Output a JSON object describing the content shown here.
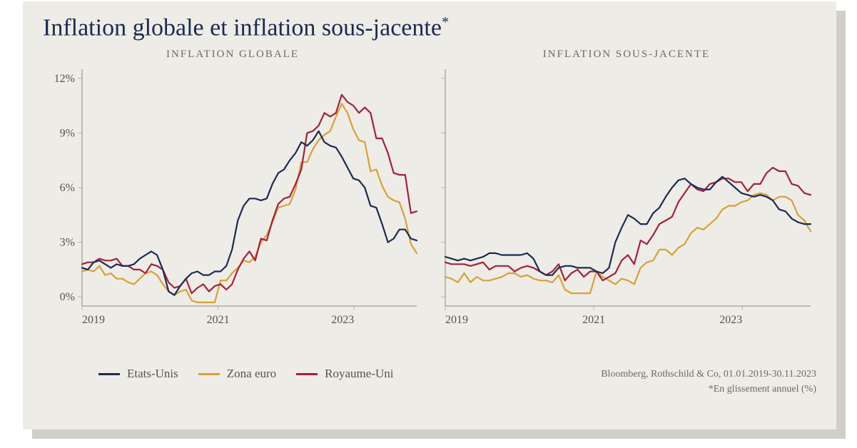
{
  "title_text": "Inflation globale et inflation sous-jacente",
  "title_asterisk": "*",
  "colors": {
    "panel_bg": "#eeece6",
    "shadow": "#d0cec8",
    "title": "#1b2a52",
    "axis_text": "#545350",
    "grid": "#b8b6af",
    "series_us": "#1b2a52",
    "series_euro": "#d6a13a",
    "series_uk": "#a1223a"
  },
  "y_axis": {
    "min": -0.5,
    "max": 12.5,
    "ticks": [
      0,
      3,
      6,
      9,
      12
    ],
    "tick_labels": [
      "0%",
      "3%",
      "6%",
      "9%",
      "12%"
    ]
  },
  "x_axis": {
    "min": 2019.0,
    "max": 2023.92,
    "ticks": [
      2019,
      2021,
      2023
    ],
    "tick_labels": [
      "2019",
      "2021",
      "2023"
    ]
  },
  "subplots": [
    {
      "title": "INFLATION GLOBALE",
      "show_y_labels": true,
      "series": {
        "us": [
          1.6,
          1.5,
          1.9,
          2.0,
          1.8,
          1.6,
          1.8,
          1.7,
          1.7,
          1.8,
          2.1,
          2.3,
          2.5,
          2.3,
          1.5,
          0.3,
          0.1,
          0.6,
          1.0,
          1.3,
          1.4,
          1.2,
          1.2,
          1.4,
          1.4,
          1.7,
          2.6,
          4.2,
          5.0,
          5.4,
          5.4,
          5.3,
          5.4,
          6.2,
          6.8,
          7.0,
          7.5,
          7.9,
          8.5,
          8.3,
          8.6,
          9.1,
          8.5,
          8.3,
          8.2,
          7.7,
          7.1,
          6.5,
          6.4,
          6.0,
          5.0,
          4.9,
          4.0,
          3.0,
          3.2,
          3.7,
          3.7,
          3.2,
          3.1
        ],
        "euro": [
          1.4,
          1.5,
          1.4,
          1.7,
          1.2,
          1.3,
          1.0,
          1.0,
          0.8,
          0.7,
          1.0,
          1.3,
          1.4,
          1.2,
          0.7,
          0.3,
          0.1,
          0.3,
          0.4,
          -0.2,
          -0.3,
          -0.3,
          -0.3,
          -0.3,
          0.9,
          0.9,
          1.3,
          1.6,
          2.0,
          1.9,
          2.2,
          3.0,
          3.4,
          4.1,
          4.9,
          5.0,
          5.1,
          5.9,
          7.4,
          7.4,
          8.1,
          8.6,
          8.9,
          9.1,
          9.9,
          10.6,
          10.1,
          9.2,
          8.6,
          8.5,
          6.9,
          7.0,
          6.1,
          5.5,
          5.3,
          5.2,
          4.3,
          2.9,
          2.4
        ],
        "uk": [
          1.8,
          1.9,
          1.9,
          2.1,
          2.0,
          2.0,
          2.1,
          1.7,
          1.7,
          1.5,
          1.5,
          1.3,
          1.8,
          1.7,
          1.5,
          0.8,
          0.5,
          0.6,
          1.0,
          0.2,
          0.5,
          0.7,
          0.3,
          0.6,
          0.7,
          0.4,
          0.7,
          1.5,
          2.1,
          2.5,
          2.0,
          3.2,
          3.1,
          4.2,
          5.1,
          5.4,
          5.5,
          6.2,
          7.0,
          9.0,
          9.1,
          9.4,
          10.1,
          9.9,
          10.1,
          11.1,
          10.7,
          10.5,
          10.1,
          10.4,
          10.1,
          8.7,
          8.7,
          7.9,
          6.8,
          6.7,
          6.7,
          4.6,
          4.7
        ]
      }
    },
    {
      "title": "INFLATION SOUS-JACENTE",
      "show_y_labels": false,
      "series": {
        "us": [
          2.2,
          2.1,
          2.0,
          2.1,
          2.0,
          2.1,
          2.2,
          2.4,
          2.4,
          2.3,
          2.3,
          2.3,
          2.3,
          2.4,
          2.1,
          1.4,
          1.2,
          1.2,
          1.6,
          1.7,
          1.7,
          1.6,
          1.6,
          1.6,
          1.4,
          1.3,
          1.6,
          3.0,
          3.8,
          4.5,
          4.3,
          4.0,
          4.0,
          4.6,
          4.9,
          5.5,
          6.0,
          6.4,
          6.5,
          6.2,
          6.0,
          5.9,
          5.9,
          6.3,
          6.6,
          6.3,
          6.0,
          5.7,
          5.6,
          5.5,
          5.6,
          5.5,
          5.3,
          4.8,
          4.7,
          4.3,
          4.1,
          4.0,
          4.0
        ],
        "euro": [
          1.1,
          1.0,
          0.8,
          1.3,
          0.8,
          1.1,
          0.9,
          0.9,
          1.0,
          1.1,
          1.3,
          1.3,
          1.1,
          1.2,
          1.0,
          0.9,
          0.9,
          0.8,
          1.2,
          0.4,
          0.2,
          0.2,
          0.2,
          0.2,
          1.4,
          1.1,
          0.9,
          0.7,
          1.0,
          0.9,
          0.7,
          1.6,
          1.9,
          2.0,
          2.6,
          2.6,
          2.3,
          2.7,
          2.9,
          3.5,
          3.8,
          3.7,
          4.0,
          4.3,
          4.8,
          5.0,
          5.0,
          5.2,
          5.3,
          5.6,
          5.7,
          5.6,
          5.3,
          5.5,
          5.5,
          5.3,
          4.5,
          4.2,
          3.6
        ],
        "uk": [
          1.9,
          1.8,
          1.8,
          1.8,
          1.7,
          1.8,
          1.9,
          1.5,
          1.7,
          1.7,
          1.7,
          1.4,
          1.6,
          1.7,
          1.6,
          1.4,
          1.2,
          1.4,
          1.8,
          0.9,
          1.3,
          1.5,
          1.1,
          1.4,
          1.4,
          0.9,
          1.1,
          1.3,
          2.0,
          2.3,
          1.8,
          3.1,
          2.9,
          3.4,
          4.0,
          4.2,
          4.4,
          5.2,
          5.7,
          6.2,
          5.9,
          5.8,
          6.2,
          6.3,
          6.5,
          6.5,
          6.3,
          6.3,
          5.8,
          6.2,
          6.2,
          6.8,
          7.1,
          6.9,
          6.9,
          6.2,
          6.1,
          5.7,
          5.6
        ]
      }
    }
  ],
  "legend": [
    {
      "label": "Etats-Unis",
      "color_key": "series_us"
    },
    {
      "label": "Zona euro",
      "color_key": "series_euro"
    },
    {
      "label": "Royaume-Uni",
      "color_key": "series_uk"
    }
  ],
  "source_line1": "Bloomberg, Rothschild & Co, 01.01.2019-30.11.2023",
  "source_line2": "*En glissement annuel (%)",
  "line_width": 2.2,
  "label_fontsize": 16
}
